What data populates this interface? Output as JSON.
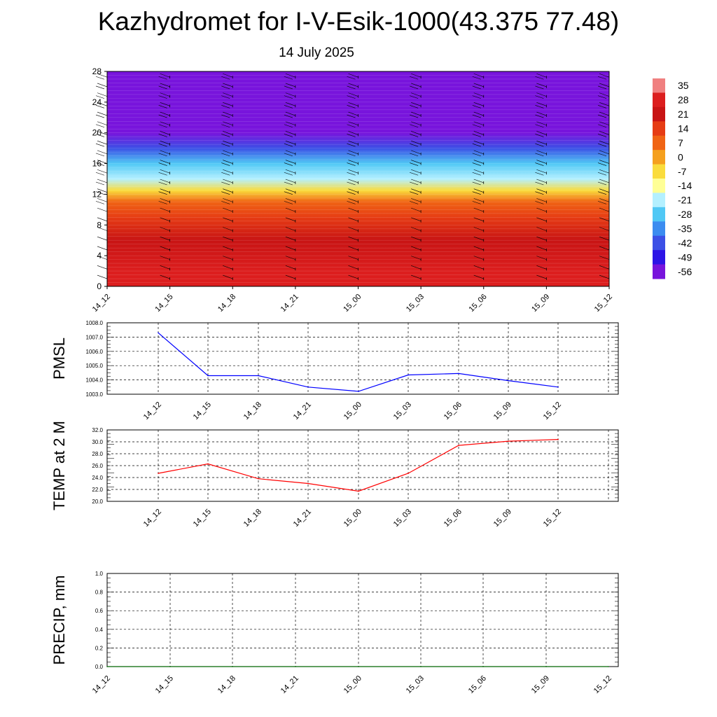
{
  "title": "Kazhydromet for I-V-Esik-1000(43.375 77.48)",
  "subtitle": "14 July 2025",
  "colors": {
    "pmsl_line": "#0000ff",
    "temp_line": "#ff0000",
    "precip_line": "#006400",
    "grid": "#000000"
  },
  "colorbar": {
    "labels": [
      "35",
      "28",
      "21",
      "14",
      "7",
      "0",
      "-7",
      "-14",
      "-21",
      "-28",
      "-35",
      "-42",
      "-49",
      "-56"
    ],
    "colors": [
      "#f08080",
      "#dc1e1e",
      "#c81414",
      "#e63c14",
      "#f06414",
      "#f5a01e",
      "#fadc3c",
      "#ffff96",
      "#b4f0ff",
      "#50c8f5",
      "#3c8cf0",
      "#3c50e6",
      "#2d14e6",
      "#7814dc"
    ]
  },
  "chart_data": [
    {
      "type": "heatmap",
      "xlabel": "",
      "ylabel": "",
      "ylim": [
        0,
        28
      ],
      "y_ticks": [
        "0",
        "4",
        "8",
        "12",
        "16",
        "20",
        "24",
        "28"
      ],
      "x_ticks": [
        "14_12",
        "14_15",
        "14_18",
        "14_21",
        "15_00",
        "15_03",
        "15_06",
        "15_09",
        "15_12"
      ],
      "description_levels": {
        "note": "temperature field: warm (red, ~28) near 0-8, orange/yellow ~10-13, cyan/blue 14-20, violet (-56) above 21",
        "bands": [
          {
            "y": [
              0,
              4
            ],
            "value": 28
          },
          {
            "y": [
              4,
              8
            ],
            "value": 21
          },
          {
            "y": [
              8,
              10
            ],
            "value": 14
          },
          {
            "y": [
              10,
              12
            ],
            "value": 7
          },
          {
            "y": [
              12,
              13
            ],
            "value": -7
          },
          {
            "y": [
              13,
              15
            ],
            "value": -21
          },
          {
            "y": [
              15,
              17
            ],
            "value": -28
          },
          {
            "y": [
              17,
              19
            ],
            "value": -42
          },
          {
            "y": [
              19,
              21
            ],
            "value": -56
          },
          {
            "y": [
              21,
              28
            ],
            "value": -56
          }
        ]
      },
      "wind_barb_columns": [
        "14_12",
        "14_15",
        "14_18",
        "14_21",
        "15_00",
        "15_03",
        "15_06",
        "15_09",
        "15_12"
      ]
    },
    {
      "type": "line",
      "ylabel": "PMSL",
      "ylim": [
        1003.0,
        1008.0
      ],
      "y_ticks": [
        "1003.0",
        "1004.0",
        "1005.0",
        "1006.0",
        "1007.0",
        "1008.0"
      ],
      "x": [
        "14_12",
        "14_15",
        "14_18",
        "14_21",
        "15_00",
        "15_03",
        "15_06",
        "15_09",
        "15_12"
      ],
      "values": [
        1007.3,
        1004.3,
        1004.3,
        1003.5,
        1003.2,
        1004.35,
        1004.45,
        1003.95,
        1003.5
      ]
    },
    {
      "type": "line",
      "ylabel": "TEMP at 2 M",
      "ylim": [
        20.0,
        32.0
      ],
      "y_ticks": [
        "20.0",
        "22.0",
        "24.0",
        "26.0",
        "28.0",
        "30.0",
        "32.0"
      ],
      "x": [
        "14_12",
        "14_15",
        "14_18",
        "14_21",
        "15_00",
        "15_03",
        "15_06",
        "15_09",
        "15_12"
      ],
      "values": [
        24.7,
        26.3,
        23.8,
        23.0,
        21.7,
        24.7,
        29.4,
        30.1,
        30.4
      ]
    },
    {
      "type": "line",
      "ylabel": "PRECIP, mm",
      "ylim": [
        0.0,
        1.0
      ],
      "y_ticks": [
        "0.0",
        "0.2",
        "0.4",
        "0.6",
        "0.8",
        "1.0"
      ],
      "x": [
        "14_12",
        "14_15",
        "14_18",
        "14_21",
        "15_00",
        "15_03",
        "15_06",
        "15_09",
        "15_12"
      ],
      "values": [
        0,
        0,
        0,
        0,
        0,
        0,
        0,
        0,
        0
      ]
    }
  ]
}
